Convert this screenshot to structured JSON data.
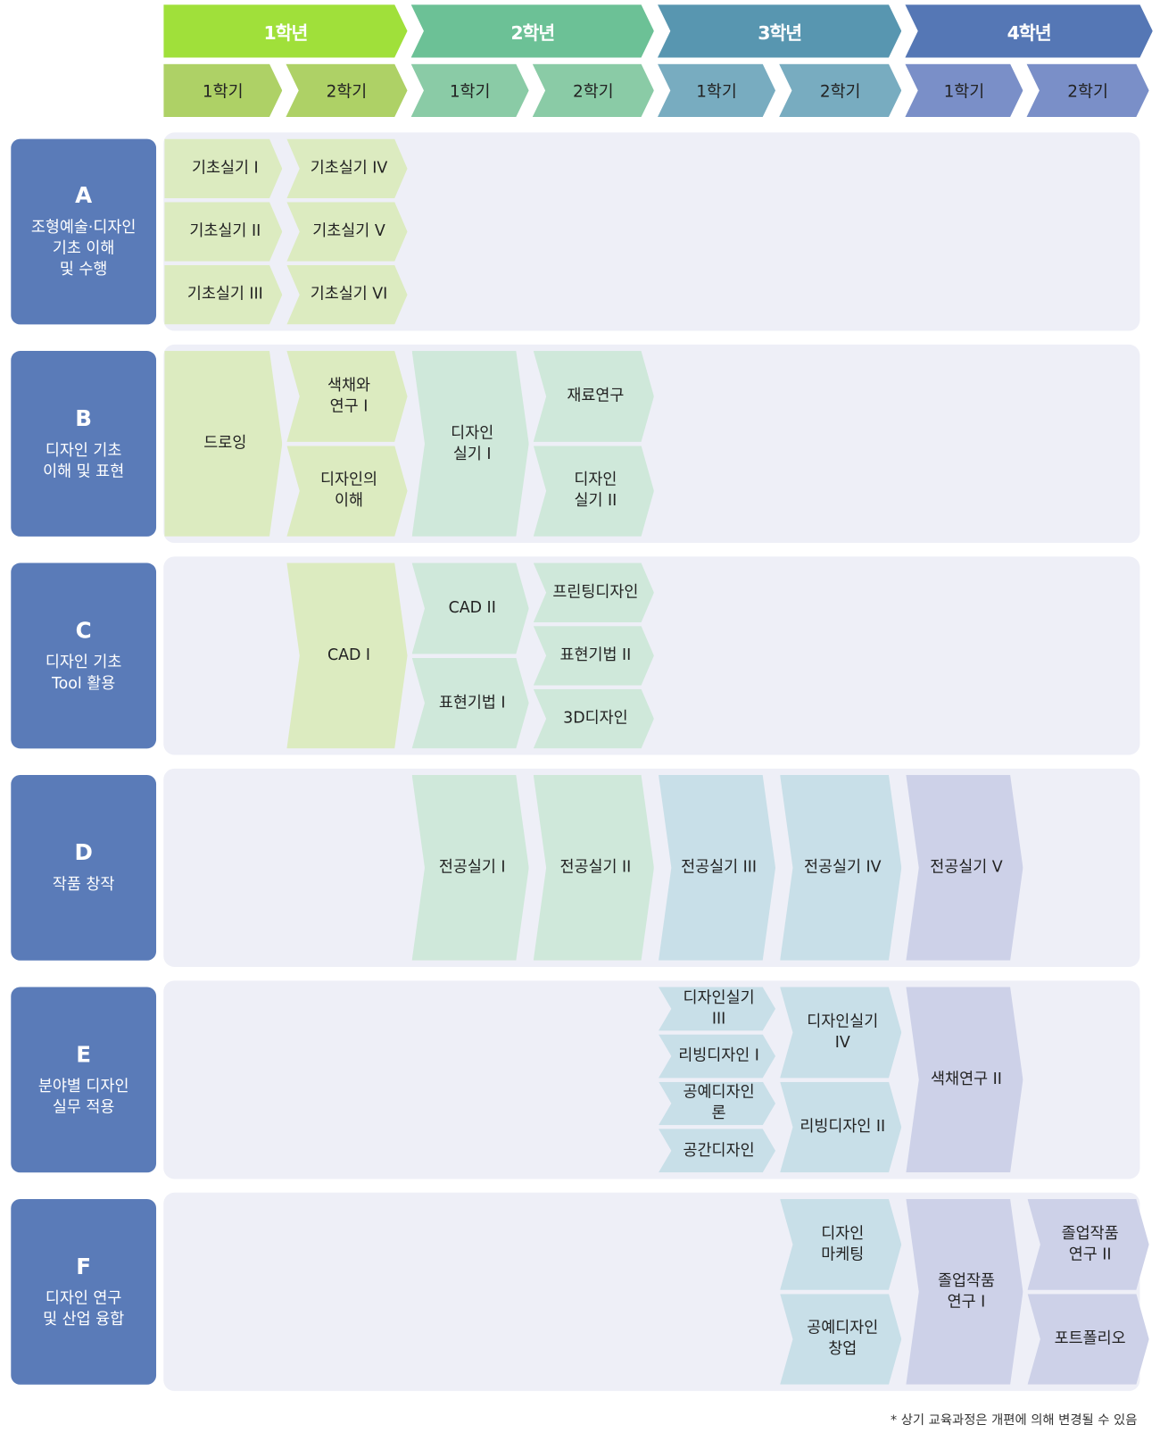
{
  "colors": {
    "years": [
      "#a0e03a",
      "#6cc196",
      "#5896b0",
      "#5577b5"
    ],
    "semesters": [
      "#aed166",
      "#8acba6",
      "#78acc0",
      "#7a8fc8"
    ],
    "courses": [
      "#dcebc0",
      "#cfe8da",
      "#c8dfe8",
      "#cdd1e8"
    ],
    "row_bg": "#eeeff7",
    "category_bg": "#5a7bb8"
  },
  "years": [
    "1학년",
    "2학년",
    "3학년",
    "4학년"
  ],
  "semesters": [
    "1학기",
    "2학기",
    "1학기",
    "2학기",
    "1학기",
    "2학기",
    "1학기",
    "2학기"
  ],
  "categories": [
    {
      "letter": "A",
      "desc": "조형예술·디자인\n기초 이해\n및 수행",
      "courses": [
        {
          "sem": 0,
          "items": [
            "기초실기 I",
            "기초실기 II",
            "기초실기 III"
          ]
        },
        {
          "sem": 1,
          "items": [
            "기초실기 IV",
            "기초실기 V",
            "기초실기 VI"
          ]
        }
      ]
    },
    {
      "letter": "B",
      "desc": "디자인 기초\n이해 및 표현",
      "courses": [
        {
          "sem": 0,
          "items": [
            "드로잉"
          ]
        },
        {
          "sem": 1,
          "items": [
            "색채와\n연구 I",
            "디자인의\n이해"
          ]
        },
        {
          "sem": 2,
          "items": [
            "디자인\n실기 I"
          ]
        },
        {
          "sem": 3,
          "items": [
            "재료연구",
            "디자인\n실기 II"
          ]
        }
      ]
    },
    {
      "letter": "C",
      "desc": "디자인 기초\nTool 활용",
      "courses": [
        {
          "sem": 1,
          "items": [
            "CAD I"
          ]
        },
        {
          "sem": 2,
          "items": [
            "CAD II",
            "표현기법 I"
          ]
        },
        {
          "sem": 3,
          "items": [
            "프린팅디자인",
            "표현기법 II",
            "3D디자인"
          ]
        }
      ]
    },
    {
      "letter": "D",
      "desc": "작품 창작",
      "courses": [
        {
          "sem": 2,
          "items": [
            "전공실기 I"
          ]
        },
        {
          "sem": 3,
          "items": [
            "전공실기 II"
          ]
        },
        {
          "sem": 4,
          "items": [
            "전공실기 III"
          ]
        },
        {
          "sem": 5,
          "items": [
            "전공실기 IV"
          ]
        },
        {
          "sem": 6,
          "items": [
            "전공실기 V"
          ]
        }
      ]
    },
    {
      "letter": "E",
      "desc": "분야별 디자인\n실무 적용",
      "courses": [
        {
          "sem": 4,
          "items": [
            "디자인실기 III",
            "리빙디자인 I",
            "공예디자인론",
            "공간디자인"
          ]
        },
        {
          "sem": 5,
          "items": [
            "디자인실기 IV",
            "리빙디자인 II"
          ]
        },
        {
          "sem": 6,
          "items": [
            "색채연구 II"
          ]
        }
      ]
    },
    {
      "letter": "F",
      "desc": "디자인 연구\n및 산업 융합",
      "courses": [
        {
          "sem": 5,
          "items": [
            "디자인\n마케팅",
            "공예디자인\n창업"
          ]
        },
        {
          "sem": 6,
          "items": [
            "졸업작품\n연구 I"
          ]
        },
        {
          "sem": 7,
          "items": [
            "졸업작품\n연구 II",
            "포트폴리오"
          ]
        }
      ]
    }
  ],
  "footnote": "* 상기 교육과정은 개편에 의해 변경될 수 있음"
}
